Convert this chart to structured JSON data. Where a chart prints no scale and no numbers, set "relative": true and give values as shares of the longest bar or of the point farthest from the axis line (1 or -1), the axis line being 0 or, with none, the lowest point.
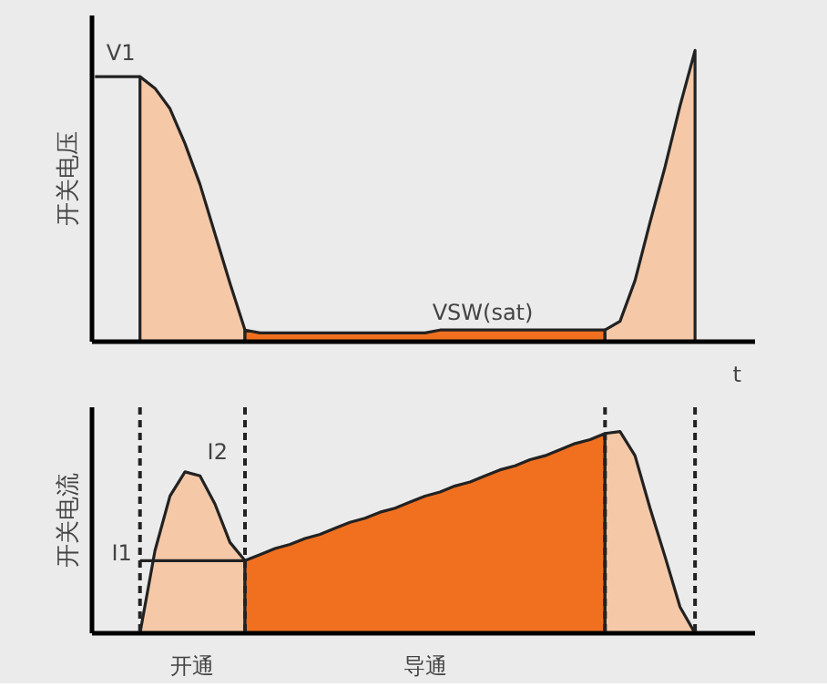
{
  "chart_data": [
    {
      "type": "area",
      "relative": true,
      "ylabel": "开关电压",
      "xlabel": "t",
      "categories": [
        null,
        null,
        null,
        null,
        null,
        null,
        null,
        null,
        null,
        null,
        null,
        null,
        null,
        null,
        null,
        null,
        null,
        null,
        null,
        null,
        null,
        null,
        null,
        null,
        null,
        null,
        null,
        null,
        null,
        null,
        null,
        null,
        null,
        null,
        null,
        null,
        null,
        null,
        null,
        null,
        null
      ],
      "series": [
        {
          "name": "V1",
          "type": "line",
          "color": "#222222",
          "values": [
            0.91,
            0.91,
            0.91,
            0.91,
            null,
            null,
            null,
            null,
            null,
            null,
            null,
            null,
            null,
            null,
            null,
            null,
            null,
            null,
            null,
            null,
            null,
            null,
            null,
            null,
            null,
            null,
            null,
            null,
            null,
            null,
            null,
            null,
            null,
            null,
            null,
            null,
            null,
            null,
            null,
            null,
            null
          ]
        },
        {
          "color": "#f5c9a8",
          "values": [
            null,
            null,
            null,
            0.91,
            0.87,
            0.8,
            0.68,
            0.54,
            0.37,
            0.2,
            0.04,
            null,
            null,
            null,
            null,
            null,
            null,
            null,
            null,
            null,
            null,
            null,
            null,
            null,
            null,
            null,
            null,
            null,
            null,
            null,
            null,
            null,
            null,
            null,
            null,
            null,
            null,
            null,
            null,
            null,
            null
          ]
        },
        {
          "name": "VSW(sat)",
          "color": "#f07020",
          "values": [
            null,
            null,
            null,
            null,
            null,
            null,
            null,
            null,
            null,
            null,
            0.04,
            0.03,
            0.03,
            0.03,
            0.03,
            0.03,
            0.03,
            0.03,
            0.03,
            0.03,
            0.03,
            0.03,
            0.03,
            0.04,
            0.04,
            0.04,
            0.04,
            0.04,
            0.04,
            0.04,
            0.04,
            0.04,
            0.04,
            0.04,
            0.04,
            null,
            null,
            null,
            null,
            null,
            null
          ]
        },
        {
          "color": "#f5c9a8",
          "values": [
            null,
            null,
            null,
            null,
            null,
            null,
            null,
            null,
            null,
            null,
            null,
            null,
            null,
            null,
            null,
            null,
            null,
            null,
            null,
            null,
            null,
            null,
            null,
            null,
            null,
            null,
            null,
            null,
            null,
            null,
            null,
            null,
            null,
            null,
            0.04,
            0.07,
            0.21,
            0.41,
            0.6,
            0.81,
            1
          ]
        }
      ]
    },
    {
      "type": "area",
      "relative": true,
      "ylabel": "开关电流",
      "categories": [
        null,
        null,
        null,
        null,
        null,
        null,
        null,
        null,
        null,
        null,
        null,
        null,
        null,
        null,
        null,
        null,
        null,
        null,
        null,
        null,
        null,
        null,
        null,
        null,
        null,
        null,
        null,
        null,
        null,
        null,
        null,
        null,
        null,
        null,
        null,
        null,
        null,
        null,
        null,
        null,
        null
      ],
      "series": [
        {
          "name": "I2",
          "color": "#f5c9a8",
          "values": [
            null,
            null,
            null,
            0,
            0.41,
            0.68,
            0.8,
            0.78,
            0.64,
            0.45,
            0.36,
            null,
            null,
            null,
            null,
            null,
            null,
            null,
            null,
            null,
            null,
            null,
            null,
            null,
            null,
            null,
            null,
            null,
            null,
            null,
            null,
            null,
            null,
            null,
            null,
            null,
            null,
            null,
            null,
            null,
            null
          ]
        },
        {
          "color": "#f07020",
          "values": [
            null,
            null,
            null,
            null,
            null,
            null,
            null,
            null,
            null,
            null,
            0.36,
            0.39,
            0.42,
            0.44,
            0.47,
            0.49,
            0.52,
            0.55,
            0.57,
            0.6,
            0.62,
            0.65,
            0.68,
            0.7,
            0.73,
            0.75,
            0.78,
            0.81,
            0.83,
            0.86,
            0.88,
            0.91,
            0.94,
            0.96,
            0.99,
            null,
            null,
            null,
            null,
            null,
            null
          ]
        },
        {
          "color": "#f5c9a8",
          "values": [
            null,
            null,
            null,
            null,
            null,
            null,
            null,
            null,
            null,
            null,
            null,
            null,
            null,
            null,
            null,
            null,
            null,
            null,
            null,
            null,
            null,
            null,
            null,
            null,
            null,
            null,
            null,
            null,
            null,
            null,
            null,
            null,
            null,
            null,
            0.99,
            1,
            0.88,
            0.62,
            0.38,
            0.13,
            0
          ]
        },
        {
          "name": "I1",
          "type": "line",
          "color": "#222222",
          "values": [
            null,
            null,
            null,
            0.36,
            0.36,
            0.36,
            0.36,
            0.36,
            0.36,
            0.36,
            0.36,
            null,
            null,
            null,
            null,
            null,
            null,
            null,
            null,
            null,
            null,
            null,
            null,
            null,
            null,
            null,
            null,
            null,
            null,
            null,
            null,
            null,
            null,
            null,
            null,
            null,
            null,
            null,
            null,
            null,
            null
          ]
        }
      ],
      "annotations": [
        "开通",
        "导通"
      ]
    }
  ]
}
